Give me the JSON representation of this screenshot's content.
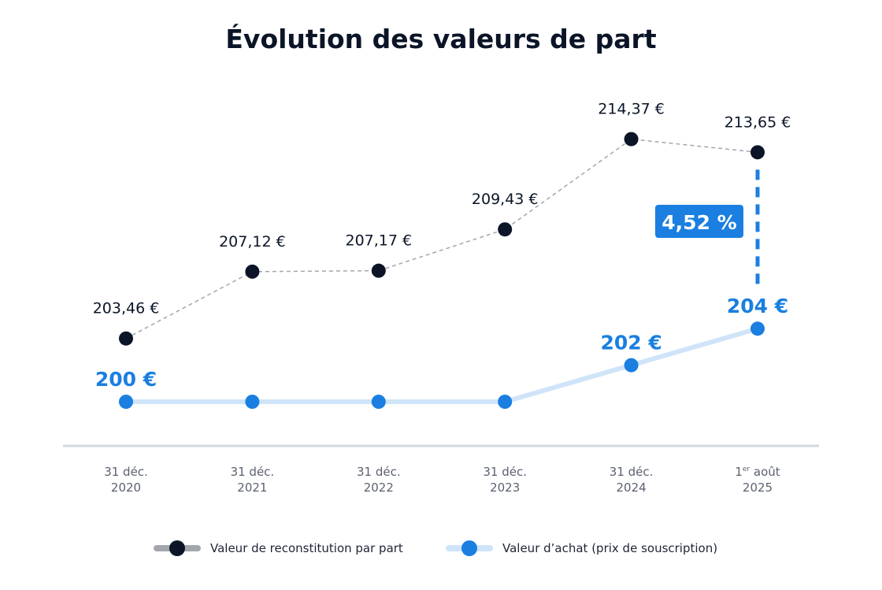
{
  "chart_data": {
    "type": "line",
    "title": "Évolution des valeurs de part",
    "categories": [
      [
        "31 déc.",
        "2020"
      ],
      [
        "31 déc.",
        "2021"
      ],
      [
        "31 déc.",
        "2022"
      ],
      [
        "31 déc.",
        "2023"
      ],
      [
        "31 déc.",
        "2024"
      ],
      [
        "1er août",
        "2025"
      ]
    ],
    "series": [
      {
        "name": "Valeur de reconstitution par part",
        "values": [
          203.46,
          207.12,
          207.17,
          209.43,
          214.37,
          213.65
        ],
        "labels": [
          "203,46 €",
          "207,12 €",
          "207,17 €",
          "209,43 €",
          "214,37 €",
          "213,65 €"
        ],
        "color": "#0b1527",
        "line_color": "#a3a7ad",
        "dashed": true
      },
      {
        "name": "Valeur d’achat (prix de souscription)",
        "values": [
          200,
          200,
          200,
          200,
          202,
          204
        ],
        "labels": [
          "200 €",
          "",
          "",
          "",
          "202 €",
          "204 €"
        ],
        "color": "#1a7fe0",
        "line_color": "#cfe4f8",
        "dashed": false
      }
    ],
    "annotation": {
      "text": "4,52 %",
      "color": "#1a7fe0"
    },
    "grid": false,
    "legend": "bottom"
  }
}
